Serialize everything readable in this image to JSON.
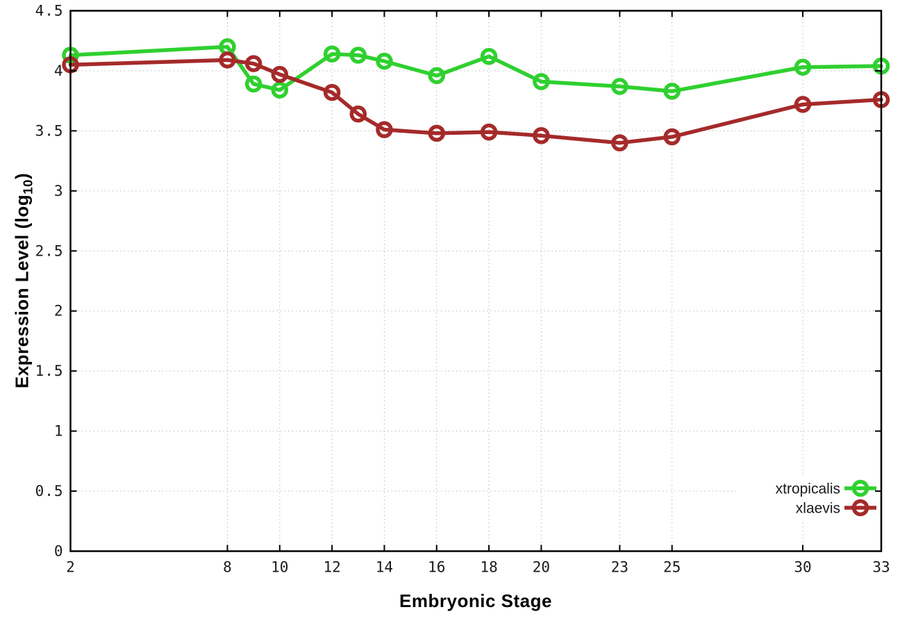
{
  "chart_data": {
    "type": "line",
    "title": "",
    "xlabel": "Embryonic Stage",
    "ylabel": {
      "pre": "Expression Level (log",
      "sub": "10",
      "post": ")"
    },
    "xlim": [
      2,
      33
    ],
    "ylim": [
      0,
      4.5
    ],
    "grid": true,
    "legend_position": "bottom-right",
    "xticks": [
      2,
      8,
      10,
      12,
      14,
      16,
      18,
      20,
      23,
      25,
      30,
      33
    ],
    "xtick_labels": [
      "2",
      "8",
      "10",
      "12",
      "14",
      "16",
      "18",
      "20",
      "23",
      "25",
      "30",
      "33"
    ],
    "yticks": [
      0,
      0.5,
      1,
      1.5,
      2,
      2.5,
      3,
      3.5,
      4,
      4.5
    ],
    "ytick_labels": [
      "0",
      "0.5",
      "1",
      "1.5",
      "2",
      "2.5",
      "3",
      "3.5",
      "4",
      "4.5"
    ],
    "x": [
      2,
      8,
      9,
      10,
      12,
      13,
      14,
      16,
      18,
      20,
      23,
      25,
      30,
      33
    ],
    "series": [
      {
        "name": "xtropicalis",
        "color": "#2fd02f",
        "values": [
          4.13,
          4.2,
          3.89,
          3.84,
          4.14,
          4.13,
          4.08,
          3.96,
          4.12,
          3.91,
          3.87,
          3.83,
          4.03,
          4.04
        ]
      },
      {
        "name": "xlaevis",
        "color": "#a52a2a",
        "values": [
          4.05,
          4.09,
          4.06,
          3.97,
          3.82,
          3.64,
          3.51,
          3.48,
          3.49,
          3.46,
          3.4,
          3.45,
          3.72,
          3.76
        ]
      }
    ],
    "colors": {
      "border": "#000000",
      "grid": "#b8b8b8",
      "tick_text": "#1a1a1a",
      "background": "#ffffff"
    }
  }
}
